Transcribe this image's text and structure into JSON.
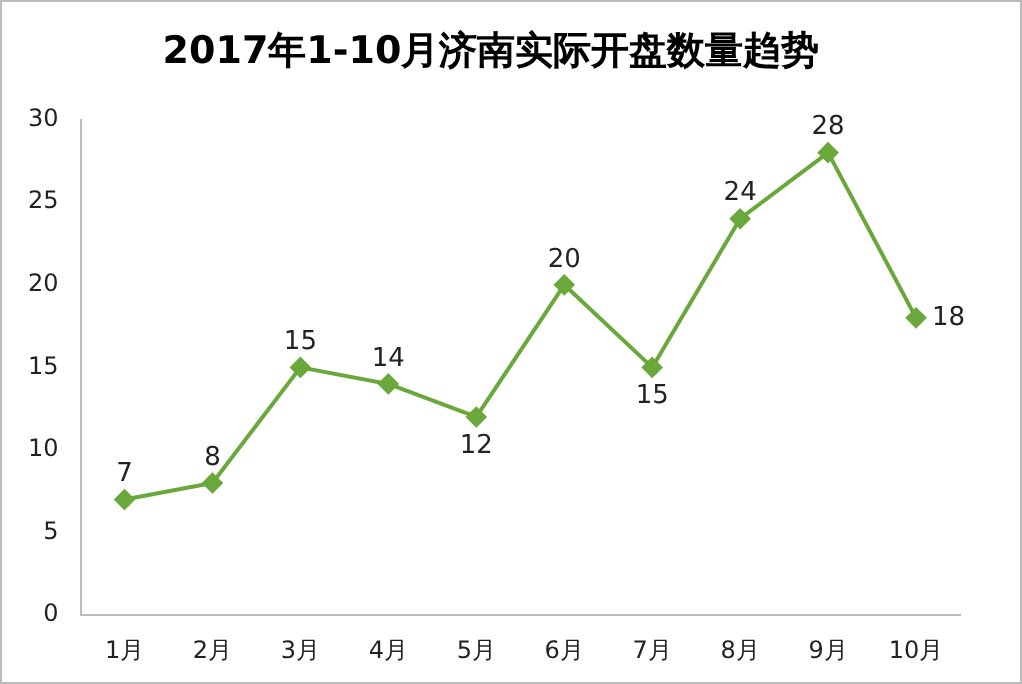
{
  "chart_data": {
    "type": "line",
    "title": "2017年1-10月济南实际开盘数量趋势",
    "categories": [
      "1月",
      "2月",
      "3月",
      "4月",
      "5月",
      "6月",
      "7月",
      "8月",
      "9月",
      "10月"
    ],
    "series": [
      {
        "color": "#6aa83c",
        "values": [
          7,
          8,
          15,
          14,
          12,
          20,
          15,
          24,
          28,
          18
        ]
      }
    ],
    "ylim": [
      0,
      30
    ],
    "yticks": [
      0,
      5,
      10,
      15,
      20,
      25,
      30
    ],
    "grid": false,
    "legend": false,
    "marker": "diamond",
    "line_style": "solid",
    "data_labels": true
  }
}
